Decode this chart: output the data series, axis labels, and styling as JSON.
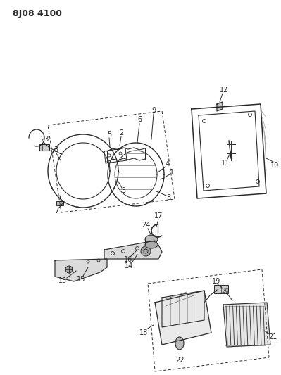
{
  "title": "8J08 4100",
  "bg_color": "#ffffff",
  "line_color": "#2a2a2a",
  "title_fontsize": 9,
  "label_fontsize": 7,
  "fig_width": 3.99,
  "fig_height": 5.33,
  "dpi": 100
}
